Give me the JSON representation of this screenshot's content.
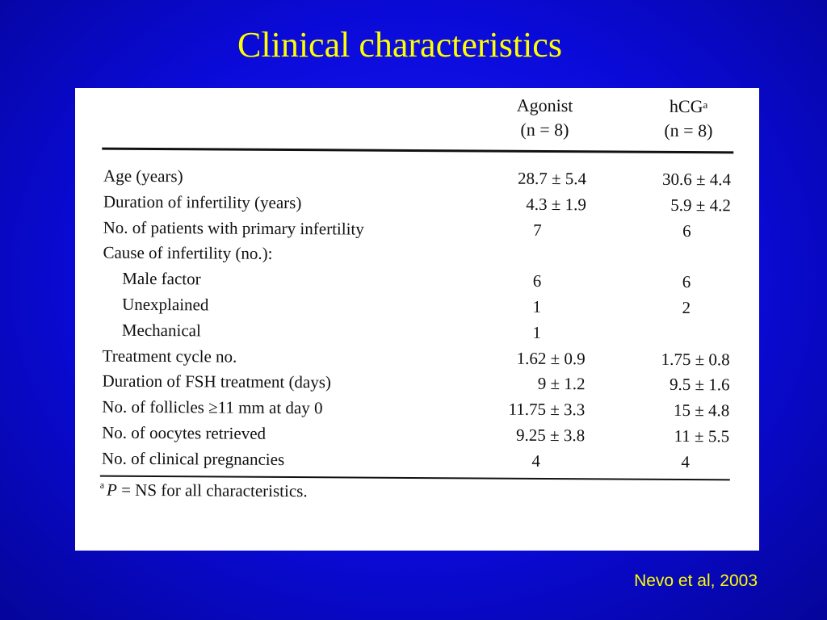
{
  "slide": {
    "title": "Clinical characteristics",
    "citation": "Nevo et al, 2003"
  },
  "table": {
    "columns": [
      {
        "name": "Agonist",
        "n": "(n = 8)",
        "superscript": ""
      },
      {
        "name": "hCG",
        "n": "(n = 8)",
        "superscript": "a"
      }
    ],
    "rows": [
      {
        "label": "Age (years)",
        "indent": false,
        "agonist": "28.7 ± 5.4",
        "hcg": "30.6 ± 4.4"
      },
      {
        "label": "Duration of infertility (years)",
        "indent": false,
        "agonist": "4.3 ± 1.9",
        "hcg": "5.9 ± 4.2"
      },
      {
        "label": "No. of patients with primary infertility",
        "indent": false,
        "agonist": "7",
        "hcg": "6"
      },
      {
        "label": "Cause of infertility (no.):",
        "indent": false,
        "agonist": "",
        "hcg": ""
      },
      {
        "label": "Male factor",
        "indent": true,
        "agonist": "6",
        "hcg": "6"
      },
      {
        "label": "Unexplained",
        "indent": true,
        "agonist": "1",
        "hcg": "2"
      },
      {
        "label": "Mechanical",
        "indent": true,
        "agonist": "1",
        "hcg": ""
      },
      {
        "label": "Treatment cycle no.",
        "indent": false,
        "agonist": "1.62 ± 0.9",
        "hcg": "1.75 ± 0.8"
      },
      {
        "label": "Duration of FSH treatment (days)",
        "indent": false,
        "agonist": "9 ± 1.2",
        "hcg": "9.5 ± 1.6"
      },
      {
        "label": "No. of follicles ≥11 mm at day 0",
        "indent": false,
        "agonist": "11.75 ± 3.3",
        "hcg": "15 ± 4.8"
      },
      {
        "label": "No. of oocytes retrieved",
        "indent": false,
        "agonist": "9.25 ± 3.8",
        "hcg": "11 ± 5.5"
      },
      {
        "label": "No. of clinical pregnancies",
        "indent": false,
        "agonist": "4",
        "hcg": "4"
      }
    ],
    "footnote": {
      "marker": "a",
      "p": "P",
      "text": " = NS for all characteristics."
    }
  }
}
